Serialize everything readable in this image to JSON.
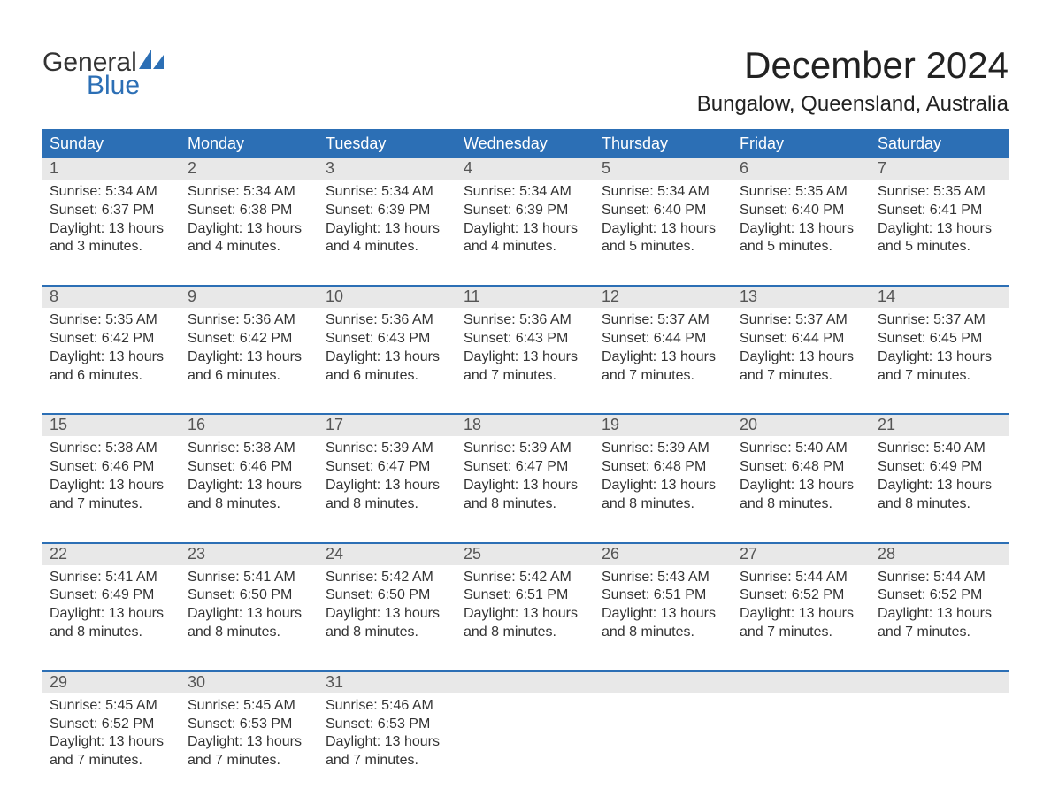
{
  "logo": {
    "word1": "General",
    "word2": "Blue",
    "text_color": "#333333",
    "blue_color": "#2c6fb5"
  },
  "title": {
    "month": "December 2024",
    "location": "Bungalow, Queensland, Australia"
  },
  "colors": {
    "header_bg": "#2c6fb5",
    "header_text": "#ffffff",
    "daynum_bg": "#e8e8e8",
    "daynum_text": "#555555",
    "body_text": "#333333",
    "week_rule": "#2c6fb5",
    "page_bg": "#ffffff"
  },
  "typography": {
    "month_title_fontsize": 42,
    "location_fontsize": 24,
    "header_fontsize": 18,
    "daynum_fontsize": 18,
    "body_fontsize": 16
  },
  "dayNames": [
    "Sunday",
    "Monday",
    "Tuesday",
    "Wednesday",
    "Thursday",
    "Friday",
    "Saturday"
  ],
  "weeks": [
    [
      {
        "n": "1",
        "sr": "5:34 AM",
        "ss": "6:37 PM",
        "dl": "13 hours and 3 minutes."
      },
      {
        "n": "2",
        "sr": "5:34 AM",
        "ss": "6:38 PM",
        "dl": "13 hours and 4 minutes."
      },
      {
        "n": "3",
        "sr": "5:34 AM",
        "ss": "6:39 PM",
        "dl": "13 hours and 4 minutes."
      },
      {
        "n": "4",
        "sr": "5:34 AM",
        "ss": "6:39 PM",
        "dl": "13 hours and 4 minutes."
      },
      {
        "n": "5",
        "sr": "5:34 AM",
        "ss": "6:40 PM",
        "dl": "13 hours and 5 minutes."
      },
      {
        "n": "6",
        "sr": "5:35 AM",
        "ss": "6:40 PM",
        "dl": "13 hours and 5 minutes."
      },
      {
        "n": "7",
        "sr": "5:35 AM",
        "ss": "6:41 PM",
        "dl": "13 hours and 5 minutes."
      }
    ],
    [
      {
        "n": "8",
        "sr": "5:35 AM",
        "ss": "6:42 PM",
        "dl": "13 hours and 6 minutes."
      },
      {
        "n": "9",
        "sr": "5:36 AM",
        "ss": "6:42 PM",
        "dl": "13 hours and 6 minutes."
      },
      {
        "n": "10",
        "sr": "5:36 AM",
        "ss": "6:43 PM",
        "dl": "13 hours and 6 minutes."
      },
      {
        "n": "11",
        "sr": "5:36 AM",
        "ss": "6:43 PM",
        "dl": "13 hours and 7 minutes."
      },
      {
        "n": "12",
        "sr": "5:37 AM",
        "ss": "6:44 PM",
        "dl": "13 hours and 7 minutes."
      },
      {
        "n": "13",
        "sr": "5:37 AM",
        "ss": "6:44 PM",
        "dl": "13 hours and 7 minutes."
      },
      {
        "n": "14",
        "sr": "5:37 AM",
        "ss": "6:45 PM",
        "dl": "13 hours and 7 minutes."
      }
    ],
    [
      {
        "n": "15",
        "sr": "5:38 AM",
        "ss": "6:46 PM",
        "dl": "13 hours and 7 minutes."
      },
      {
        "n": "16",
        "sr": "5:38 AM",
        "ss": "6:46 PM",
        "dl": "13 hours and 8 minutes."
      },
      {
        "n": "17",
        "sr": "5:39 AM",
        "ss": "6:47 PM",
        "dl": "13 hours and 8 minutes."
      },
      {
        "n": "18",
        "sr": "5:39 AM",
        "ss": "6:47 PM",
        "dl": "13 hours and 8 minutes."
      },
      {
        "n": "19",
        "sr": "5:39 AM",
        "ss": "6:48 PM",
        "dl": "13 hours and 8 minutes."
      },
      {
        "n": "20",
        "sr": "5:40 AM",
        "ss": "6:48 PM",
        "dl": "13 hours and 8 minutes."
      },
      {
        "n": "21",
        "sr": "5:40 AM",
        "ss": "6:49 PM",
        "dl": "13 hours and 8 minutes."
      }
    ],
    [
      {
        "n": "22",
        "sr": "5:41 AM",
        "ss": "6:49 PM",
        "dl": "13 hours and 8 minutes."
      },
      {
        "n": "23",
        "sr": "5:41 AM",
        "ss": "6:50 PM",
        "dl": "13 hours and 8 minutes."
      },
      {
        "n": "24",
        "sr": "5:42 AM",
        "ss": "6:50 PM",
        "dl": "13 hours and 8 minutes."
      },
      {
        "n": "25",
        "sr": "5:42 AM",
        "ss": "6:51 PM",
        "dl": "13 hours and 8 minutes."
      },
      {
        "n": "26",
        "sr": "5:43 AM",
        "ss": "6:51 PM",
        "dl": "13 hours and 8 minutes."
      },
      {
        "n": "27",
        "sr": "5:44 AM",
        "ss": "6:52 PM",
        "dl": "13 hours and 7 minutes."
      },
      {
        "n": "28",
        "sr": "5:44 AM",
        "ss": "6:52 PM",
        "dl": "13 hours and 7 minutes."
      }
    ],
    [
      {
        "n": "29",
        "sr": "5:45 AM",
        "ss": "6:52 PM",
        "dl": "13 hours and 7 minutes."
      },
      {
        "n": "30",
        "sr": "5:45 AM",
        "ss": "6:53 PM",
        "dl": "13 hours and 7 minutes."
      },
      {
        "n": "31",
        "sr": "5:46 AM",
        "ss": "6:53 PM",
        "dl": "13 hours and 7 minutes."
      },
      null,
      null,
      null,
      null
    ]
  ],
  "labels": {
    "sunrise": "Sunrise: ",
    "sunset": "Sunset: ",
    "daylight": "Daylight: "
  }
}
